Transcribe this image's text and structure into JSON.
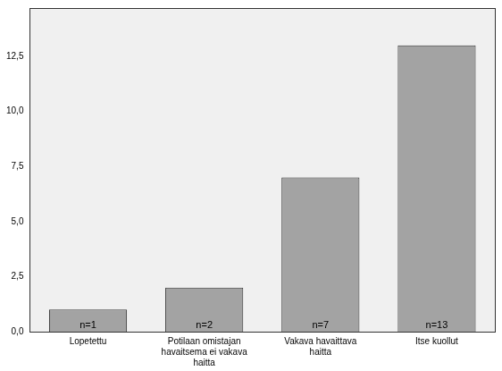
{
  "chart_data": {
    "type": "bar",
    "categories": [
      "Lopetettu",
      "Potilaan omistajan havaitsema ei vakava haitta",
      "Vakava havaittava haitta",
      "Itse kuollut"
    ],
    "values": [
      1,
      2,
      7,
      13
    ],
    "value_labels": [
      "n=1",
      "n=2",
      "n=7",
      "n=13"
    ],
    "data_labels": true,
    "color": "#a3a3a3",
    "ylim": [
      0,
      14.7
    ],
    "yticks": [
      {
        "value": 0,
        "label": "0,0"
      },
      {
        "value": 2.5,
        "label": "2,5"
      },
      {
        "value": 5,
        "label": "5,0"
      },
      {
        "value": 7.5,
        "label": "7,5"
      },
      {
        "value": 10,
        "label": "10,0"
      },
      {
        "value": 12.5,
        "label": "12,5"
      }
    ],
    "grid": false
  }
}
